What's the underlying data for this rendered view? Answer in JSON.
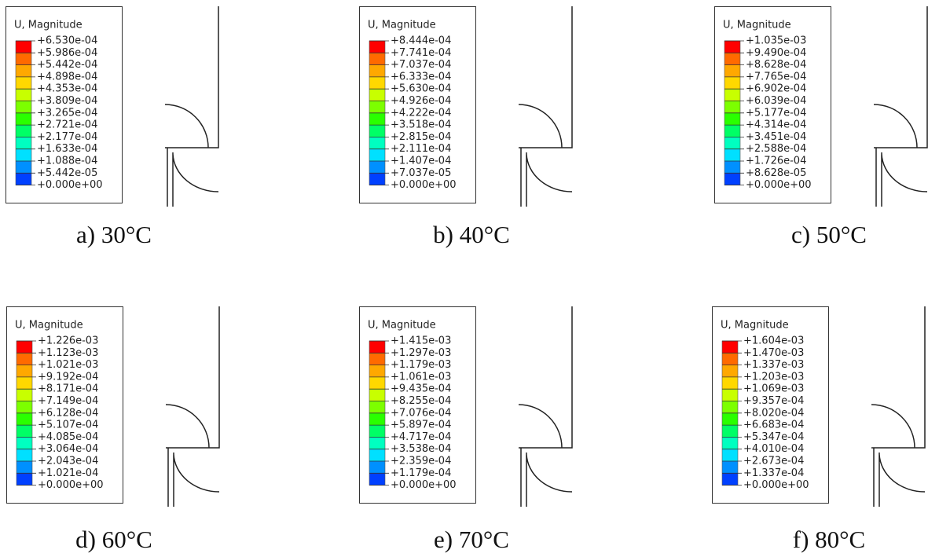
{
  "legend_colors": [
    "#ff0000",
    "#ff6a00",
    "#ffa800",
    "#ffd800",
    "#c8ff00",
    "#7cff00",
    "#2aff00",
    "#00ff66",
    "#00ffc0",
    "#00e0ff",
    "#0090ff",
    "#0040ff"
  ],
  "panels": [
    {
      "legend_title": "U, Magnitude",
      "caption": "a) 30°C",
      "labels": [
        "+6.530e-04",
        "+5.986e-04",
        "+5.442e-04",
        "+4.898e-04",
        "+4.353e-04",
        "+3.809e-04",
        "+3.265e-04",
        "+2.721e-04",
        "+2.177e-04",
        "+1.633e-04",
        "+1.088e-04",
        "+5.442e-05",
        "+0.000e+00"
      ]
    },
    {
      "legend_title": "U, Magnitude",
      "caption": "b) 40°C",
      "labels": [
        "+8.444e-04",
        "+7.741e-04",
        "+7.037e-04",
        "+6.333e-04",
        "+5.630e-04",
        "+4.926e-04",
        "+4.222e-04",
        "+3.518e-04",
        "+2.815e-04",
        "+2.111e-04",
        "+1.407e-04",
        "+7.037e-05",
        "+0.000e+00"
      ]
    },
    {
      "legend_title": "U, Magnitude",
      "caption": "c) 50°C",
      "labels": [
        "+1.035e-03",
        "+9.490e-04",
        "+8.628e-04",
        "+7.765e-04",
        "+6.902e-04",
        "+6.039e-04",
        "+5.177e-04",
        "+4.314e-04",
        "+3.451e-04",
        "+2.588e-04",
        "+1.726e-04",
        "+8.628e-05",
        "+0.000e+00"
      ]
    },
    {
      "legend_title": "U, Magnitude",
      "caption": "d) 60°C",
      "labels": [
        "+1.226e-03",
        "+1.123e-03",
        "+1.021e-03",
        "+9.192e-04",
        "+8.171e-04",
        "+7.149e-04",
        "+6.128e-04",
        "+5.107e-04",
        "+4.085e-04",
        "+3.064e-04",
        "+2.043e-04",
        "+1.021e-04",
        "+0.000e+00"
      ]
    },
    {
      "legend_title": "U, Magnitude",
      "caption": "e) 70°C",
      "labels": [
        "+1.415e-03",
        "+1.297e-03",
        "+1.179e-03",
        "+1.061e-03",
        "+9.435e-04",
        "+8.255e-04",
        "+7.076e-04",
        "+5.897e-04",
        "+4.717e-04",
        "+3.538e-04",
        "+2.359e-04",
        "+1.179e-04",
        "+0.000e+00"
      ]
    },
    {
      "legend_title": "U, Magnitude",
      "caption": "f) 80°C",
      "labels": [
        "+1.604e-03",
        "+1.470e-03",
        "+1.337e-03",
        "+1.203e-03",
        "+1.069e-03",
        "+9.357e-04",
        "+8.020e-04",
        "+6.683e-04",
        "+5.347e-04",
        "+4.010e-04",
        "+2.673e-04",
        "+1.337e-04",
        "+0.000e+00"
      ]
    }
  ]
}
